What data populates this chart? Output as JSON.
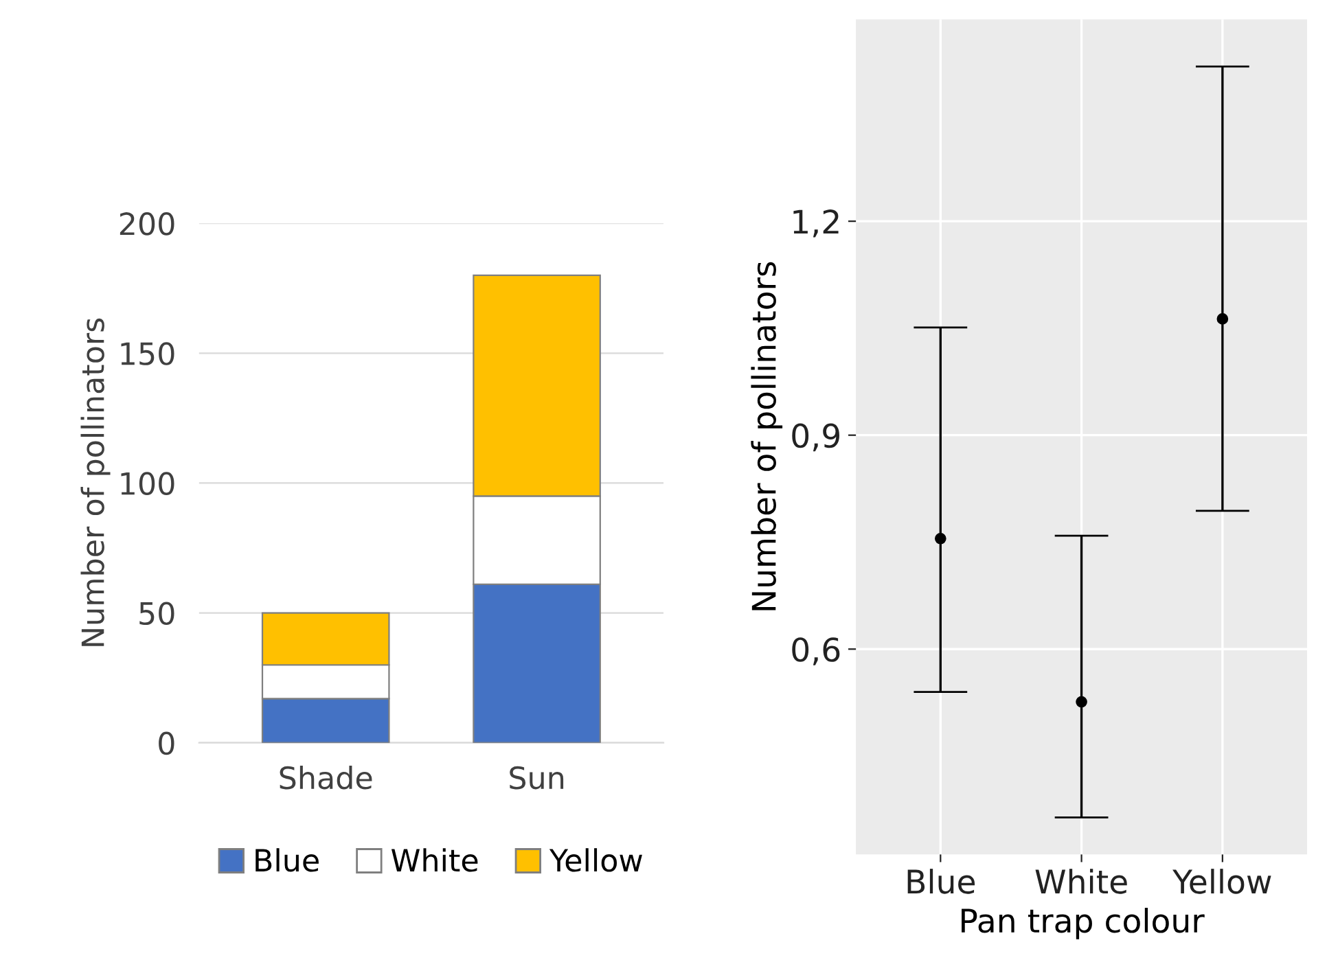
{
  "chart_data": [
    {
      "type": "bar",
      "stacked": true,
      "ylabel": "Number of pollinators",
      "categories": [
        "Shade",
        "Sun"
      ],
      "series": [
        {
          "name": "Blue",
          "color": "#4472c4",
          "values": [
            17,
            61
          ]
        },
        {
          "name": "White",
          "color": "#ffffff",
          "values": [
            13,
            34
          ]
        },
        {
          "name": "Yellow",
          "color": "#ffc000",
          "values": [
            20,
            85
          ]
        }
      ],
      "ylim": [
        0,
        200
      ],
      "yticks": [
        0,
        50,
        100,
        150,
        200
      ],
      "grid": "y",
      "legend": "bottom"
    },
    {
      "type": "scatter",
      "xlabel": "Pan trap colour",
      "ylabel": "Number of pollinators",
      "categories": [
        "Blue",
        "White",
        "Yellow"
      ],
      "series": [
        {
          "color": "#000000",
          "values": [
            0.755,
            0.526,
            1.063
          ],
          "errors": [
            [
              0.54,
              1.051
            ],
            [
              0.364,
              0.759
            ],
            [
              0.794,
              1.417
            ]
          ]
        }
      ],
      "ylim": [
        0.312,
        1.483
      ],
      "yticks": [
        {
          "value": 0.6,
          "label": "0,6"
        },
        {
          "value": 0.9,
          "label": "0,9"
        },
        {
          "value": 1.2,
          "label": "1,2"
        }
      ],
      "grid": true,
      "marker": "circle"
    }
  ]
}
